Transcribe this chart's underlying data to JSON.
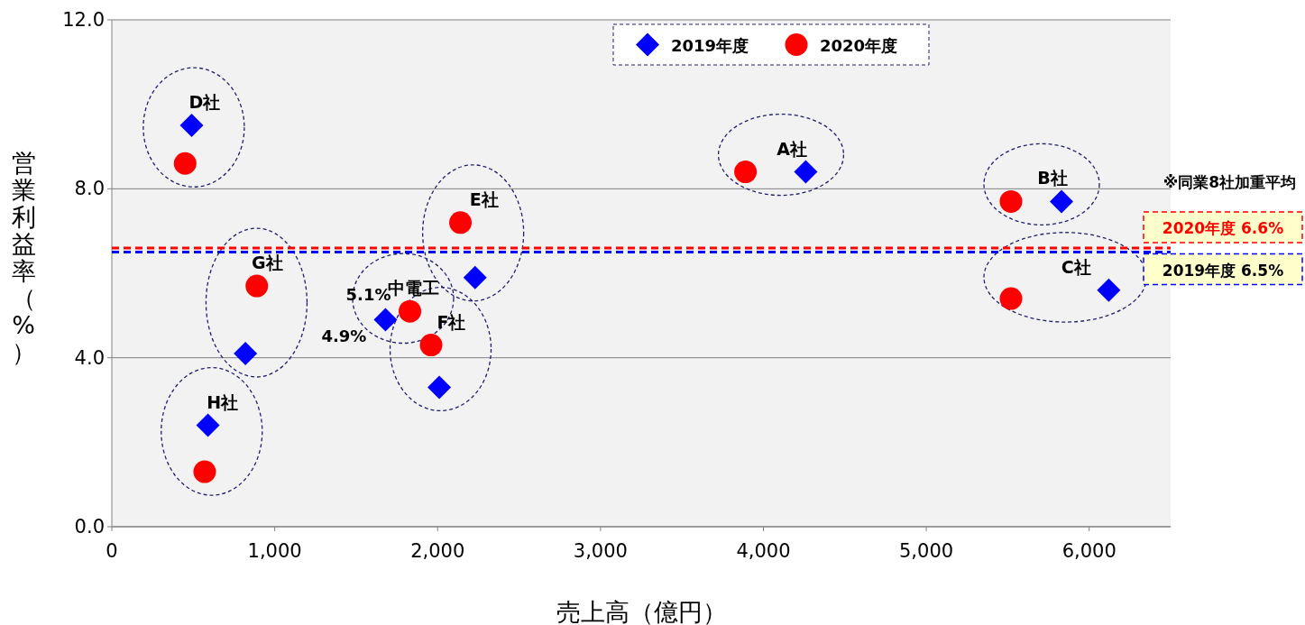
{
  "chart_data": {
    "type": "scatter",
    "xlabel": "売上高（億円）",
    "ylabel": "営業利益率（%）",
    "xlim": [
      0,
      6500
    ],
    "ylim": [
      0,
      12
    ],
    "xticks": [
      0,
      {
        "value": 1000,
        "label": "1,000"
      },
      {
        "value": 2000,
        "label": "2,000"
      },
      {
        "value": 3000,
        "label": "3,000"
      },
      {
        "value": 4000,
        "label": "4,000"
      },
      {
        "value": 5000,
        "label": "5,000"
      },
      {
        "value": 6000,
        "label": "6,000"
      }
    ],
    "yticks": [
      {
        "value": 0,
        "label": "0.0"
      },
      {
        "value": 4,
        "label": "4.0"
      },
      {
        "value": 8,
        "label": "8.0"
      },
      {
        "value": 12,
        "label": "12.0"
      }
    ],
    "grid": "y",
    "legend": "top",
    "series": [
      {
        "name": "2019年度",
        "color": "#0000ff",
        "marker": "diamond",
        "x": [
          490,
          4260,
          5830,
          6120,
          2230,
          1680,
          820,
          2010,
          590
        ],
        "values": [
          9.5,
          8.4,
          7.7,
          5.6,
          5.9,
          4.9,
          4.1,
          3.3,
          2.4
        ],
        "value_labels": [
          null,
          null,
          null,
          null,
          null,
          "4.9%",
          null,
          null,
          null
        ]
      },
      {
        "name": "2020年度",
        "color": "#ff0000",
        "marker": "circle",
        "x": [
          450,
          3890,
          5520,
          5520,
          2140,
          1830,
          890,
          1960,
          570
        ],
        "values": [
          8.6,
          8.4,
          7.7,
          5.4,
          7.2,
          5.1,
          5.7,
          4.3,
          1.3
        ],
        "value_labels": [
          null,
          null,
          null,
          null,
          null,
          "5.1%",
          null,
          null,
          null
        ]
      }
    ],
    "ref_lines": [
      {
        "axis": "y",
        "value": 6.6,
        "label": "2020年度  6.6%",
        "color": "#ff0000",
        "line_style": "dashed"
      },
      {
        "axis": "y",
        "value": 6.5,
        "label": "2019年度  6.5%",
        "color": "#0000ff",
        "line_style": "dashed"
      }
    ],
    "annotations": [
      "D社",
      "A社",
      "B社",
      "C社",
      "E社",
      "中電工",
      "G社",
      "F社",
      "H社",
      "※同業8社加重平均"
    ]
  }
}
